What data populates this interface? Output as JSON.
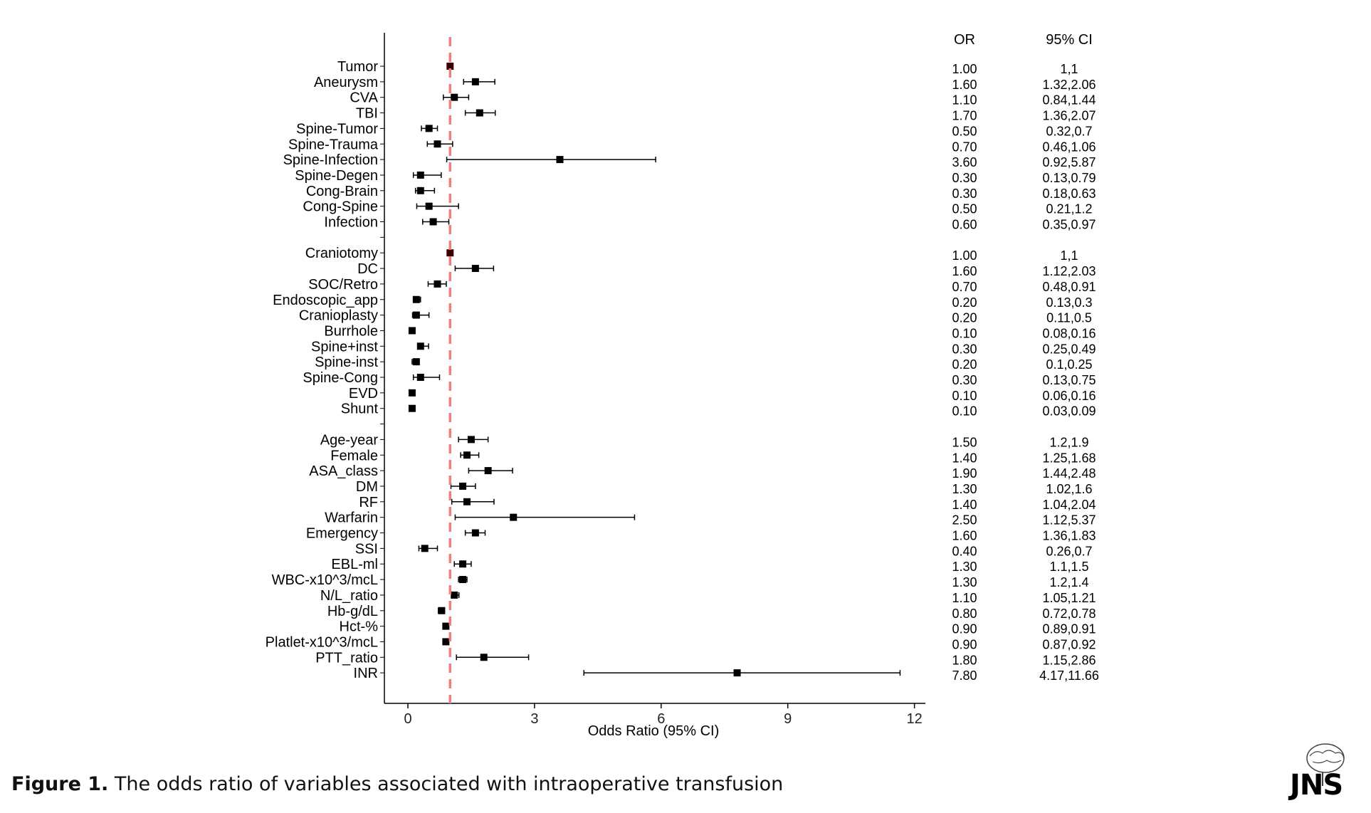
{
  "figure": {
    "caption_label": "Figure 1.",
    "caption_text": " The odds ratio of variables associated with intraoperative transfusion",
    "logo_text": "JNS"
  },
  "chart_data": {
    "type": "forest",
    "xlabel": "Odds Ratio (95% CI)",
    "xlim": [
      -0.5,
      12.2
    ],
    "xticks": [
      0,
      3,
      6,
      9,
      12
    ],
    "reference_line": 1,
    "reference_color": "#f08080",
    "point_color": "#000000",
    "columns": {
      "or_header": "OR",
      "ci_header": "95% CI"
    },
    "rows": [
      {
        "label": "Tumor",
        "or": 1.0,
        "lo": 1,
        "hi": 1,
        "or_text": "1.00",
        "ci_text": "1,1",
        "ref": true
      },
      {
        "label": "Aneurysm",
        "or": 1.6,
        "lo": 1.32,
        "hi": 2.06,
        "or_text": "1.60",
        "ci_text": "1.32,2.06"
      },
      {
        "label": "CVA",
        "or": 1.1,
        "lo": 0.84,
        "hi": 1.44,
        "or_text": "1.10",
        "ci_text": "0.84,1.44"
      },
      {
        "label": "TBI",
        "or": 1.7,
        "lo": 1.36,
        "hi": 2.07,
        "or_text": "1.70",
        "ci_text": "1.36,2.07"
      },
      {
        "label": "Spine-Tumor",
        "or": 0.5,
        "lo": 0.32,
        "hi": 0.7,
        "or_text": "0.50",
        "ci_text": "0.32,0.7"
      },
      {
        "label": "Spine-Trauma",
        "or": 0.7,
        "lo": 0.46,
        "hi": 1.06,
        "or_text": "0.70",
        "ci_text": "0.46,1.06"
      },
      {
        "label": "Spine-Infection",
        "or": 3.6,
        "lo": 0.92,
        "hi": 5.87,
        "or_text": "3.60",
        "ci_text": "0.92,5.87"
      },
      {
        "label": "Spine-Degen",
        "or": 0.3,
        "lo": 0.13,
        "hi": 0.79,
        "or_text": "0.30",
        "ci_text": "0.13,0.79"
      },
      {
        "label": "Cong-Brain",
        "or": 0.3,
        "lo": 0.18,
        "hi": 0.63,
        "or_text": "0.30",
        "ci_text": "0.18,0.63"
      },
      {
        "label": "Cong-Spine",
        "or": 0.5,
        "lo": 0.21,
        "hi": 1.2,
        "or_text": "0.50",
        "ci_text": "0.21,1.2"
      },
      {
        "label": "Infection",
        "or": 0.6,
        "lo": 0.35,
        "hi": 0.97,
        "or_text": "0.60",
        "ci_text": "0.35,0.97"
      },
      {
        "label": "",
        "gap": true
      },
      {
        "label": "Craniotomy",
        "or": 1.0,
        "lo": 1,
        "hi": 1,
        "or_text": "1.00",
        "ci_text": "1,1",
        "ref": true
      },
      {
        "label": "DC",
        "or": 1.6,
        "lo": 1.12,
        "hi": 2.03,
        "or_text": "1.60",
        "ci_text": "1.12,2.03"
      },
      {
        "label": "SOC/Retro",
        "or": 0.7,
        "lo": 0.48,
        "hi": 0.91,
        "or_text": "0.70",
        "ci_text": "0.48,0.91"
      },
      {
        "label": "Endoscopic_app",
        "or": 0.2,
        "lo": 0.13,
        "hi": 0.3,
        "or_text": "0.20",
        "ci_text": "0.13,0.3"
      },
      {
        "label": "Cranioplasty",
        "or": 0.2,
        "lo": 0.11,
        "hi": 0.5,
        "or_text": "0.20",
        "ci_text": "0.11,0.5"
      },
      {
        "label": "Burrhole",
        "or": 0.1,
        "lo": 0.08,
        "hi": 0.16,
        "or_text": "0.10",
        "ci_text": "0.08,0.16"
      },
      {
        "label": "Spine+inst",
        "or": 0.3,
        "lo": 0.25,
        "hi": 0.49,
        "or_text": "0.30",
        "ci_text": "0.25,0.49"
      },
      {
        "label": "Spine-inst",
        "or": 0.2,
        "lo": 0.1,
        "hi": 0.25,
        "or_text": "0.20",
        "ci_text": "0.1,0.25"
      },
      {
        "label": "Spine-Cong",
        "or": 0.3,
        "lo": 0.13,
        "hi": 0.75,
        "or_text": "0.30",
        "ci_text": "0.13,0.75"
      },
      {
        "label": "EVD",
        "or": 0.1,
        "lo": 0.06,
        "hi": 0.16,
        "or_text": "0.10",
        "ci_text": "0.06,0.16"
      },
      {
        "label": "Shunt",
        "or": 0.1,
        "lo": 0.03,
        "hi": 0.09,
        "or_text": "0.10",
        "ci_text": "0.03,0.09"
      },
      {
        "label": "",
        "gap": true
      },
      {
        "label": "Age-year",
        "or": 1.5,
        "lo": 1.2,
        "hi": 1.9,
        "or_text": "1.50",
        "ci_text": "1.2,1.9"
      },
      {
        "label": "Female",
        "or": 1.4,
        "lo": 1.25,
        "hi": 1.68,
        "or_text": "1.40",
        "ci_text": "1.25,1.68"
      },
      {
        "label": "ASA_class",
        "or": 1.9,
        "lo": 1.44,
        "hi": 2.48,
        "or_text": "1.90",
        "ci_text": "1.44,2.48"
      },
      {
        "label": "DM",
        "or": 1.3,
        "lo": 1.02,
        "hi": 1.6,
        "or_text": "1.30",
        "ci_text": "1.02,1.6"
      },
      {
        "label": "RF",
        "or": 1.4,
        "lo": 1.04,
        "hi": 2.04,
        "or_text": "1.40",
        "ci_text": "1.04,2.04"
      },
      {
        "label": "Warfarin",
        "or": 2.5,
        "lo": 1.12,
        "hi": 5.37,
        "or_text": "2.50",
        "ci_text": "1.12,5.37"
      },
      {
        "label": "Emergency",
        "or": 1.6,
        "lo": 1.36,
        "hi": 1.83,
        "or_text": "1.60",
        "ci_text": "1.36,1.83"
      },
      {
        "label": "SSI",
        "or": 0.4,
        "lo": 0.26,
        "hi": 0.7,
        "or_text": "0.40",
        "ci_text": "0.26,0.7"
      },
      {
        "label": "EBL-ml",
        "or": 1.3,
        "lo": 1.1,
        "hi": 1.5,
        "or_text": "1.30",
        "ci_text": "1.1,1.5"
      },
      {
        "label": "WBC-x10^3/mcL",
        "or": 1.3,
        "lo": 1.2,
        "hi": 1.4,
        "or_text": "1.30",
        "ci_text": "1.2,1.4"
      },
      {
        "label": "N/L_ratio",
        "or": 1.1,
        "lo": 1.05,
        "hi": 1.21,
        "or_text": "1.10",
        "ci_text": "1.05,1.21"
      },
      {
        "label": "Hb-g/dL",
        "or": 0.8,
        "lo": 0.72,
        "hi": 0.78,
        "or_text": "0.80",
        "ci_text": "0.72,0.78"
      },
      {
        "label": "Hct-%",
        "or": 0.9,
        "lo": 0.89,
        "hi": 0.91,
        "or_text": "0.90",
        "ci_text": "0.89,0.91"
      },
      {
        "label": "Platlet-x10^3/mcL",
        "or": 0.9,
        "lo": 0.87,
        "hi": 0.92,
        "or_text": "0.90",
        "ci_text": "0.87,0.92"
      },
      {
        "label": "PTT_ratio",
        "or": 1.8,
        "lo": 1.15,
        "hi": 2.86,
        "or_text": "1.80",
        "ci_text": "1.15,2.86"
      },
      {
        "label": "INR",
        "or": 7.8,
        "lo": 4.17,
        "hi": 11.66,
        "or_text": "7.80",
        "ci_text": "4.17,11.66"
      }
    ]
  }
}
